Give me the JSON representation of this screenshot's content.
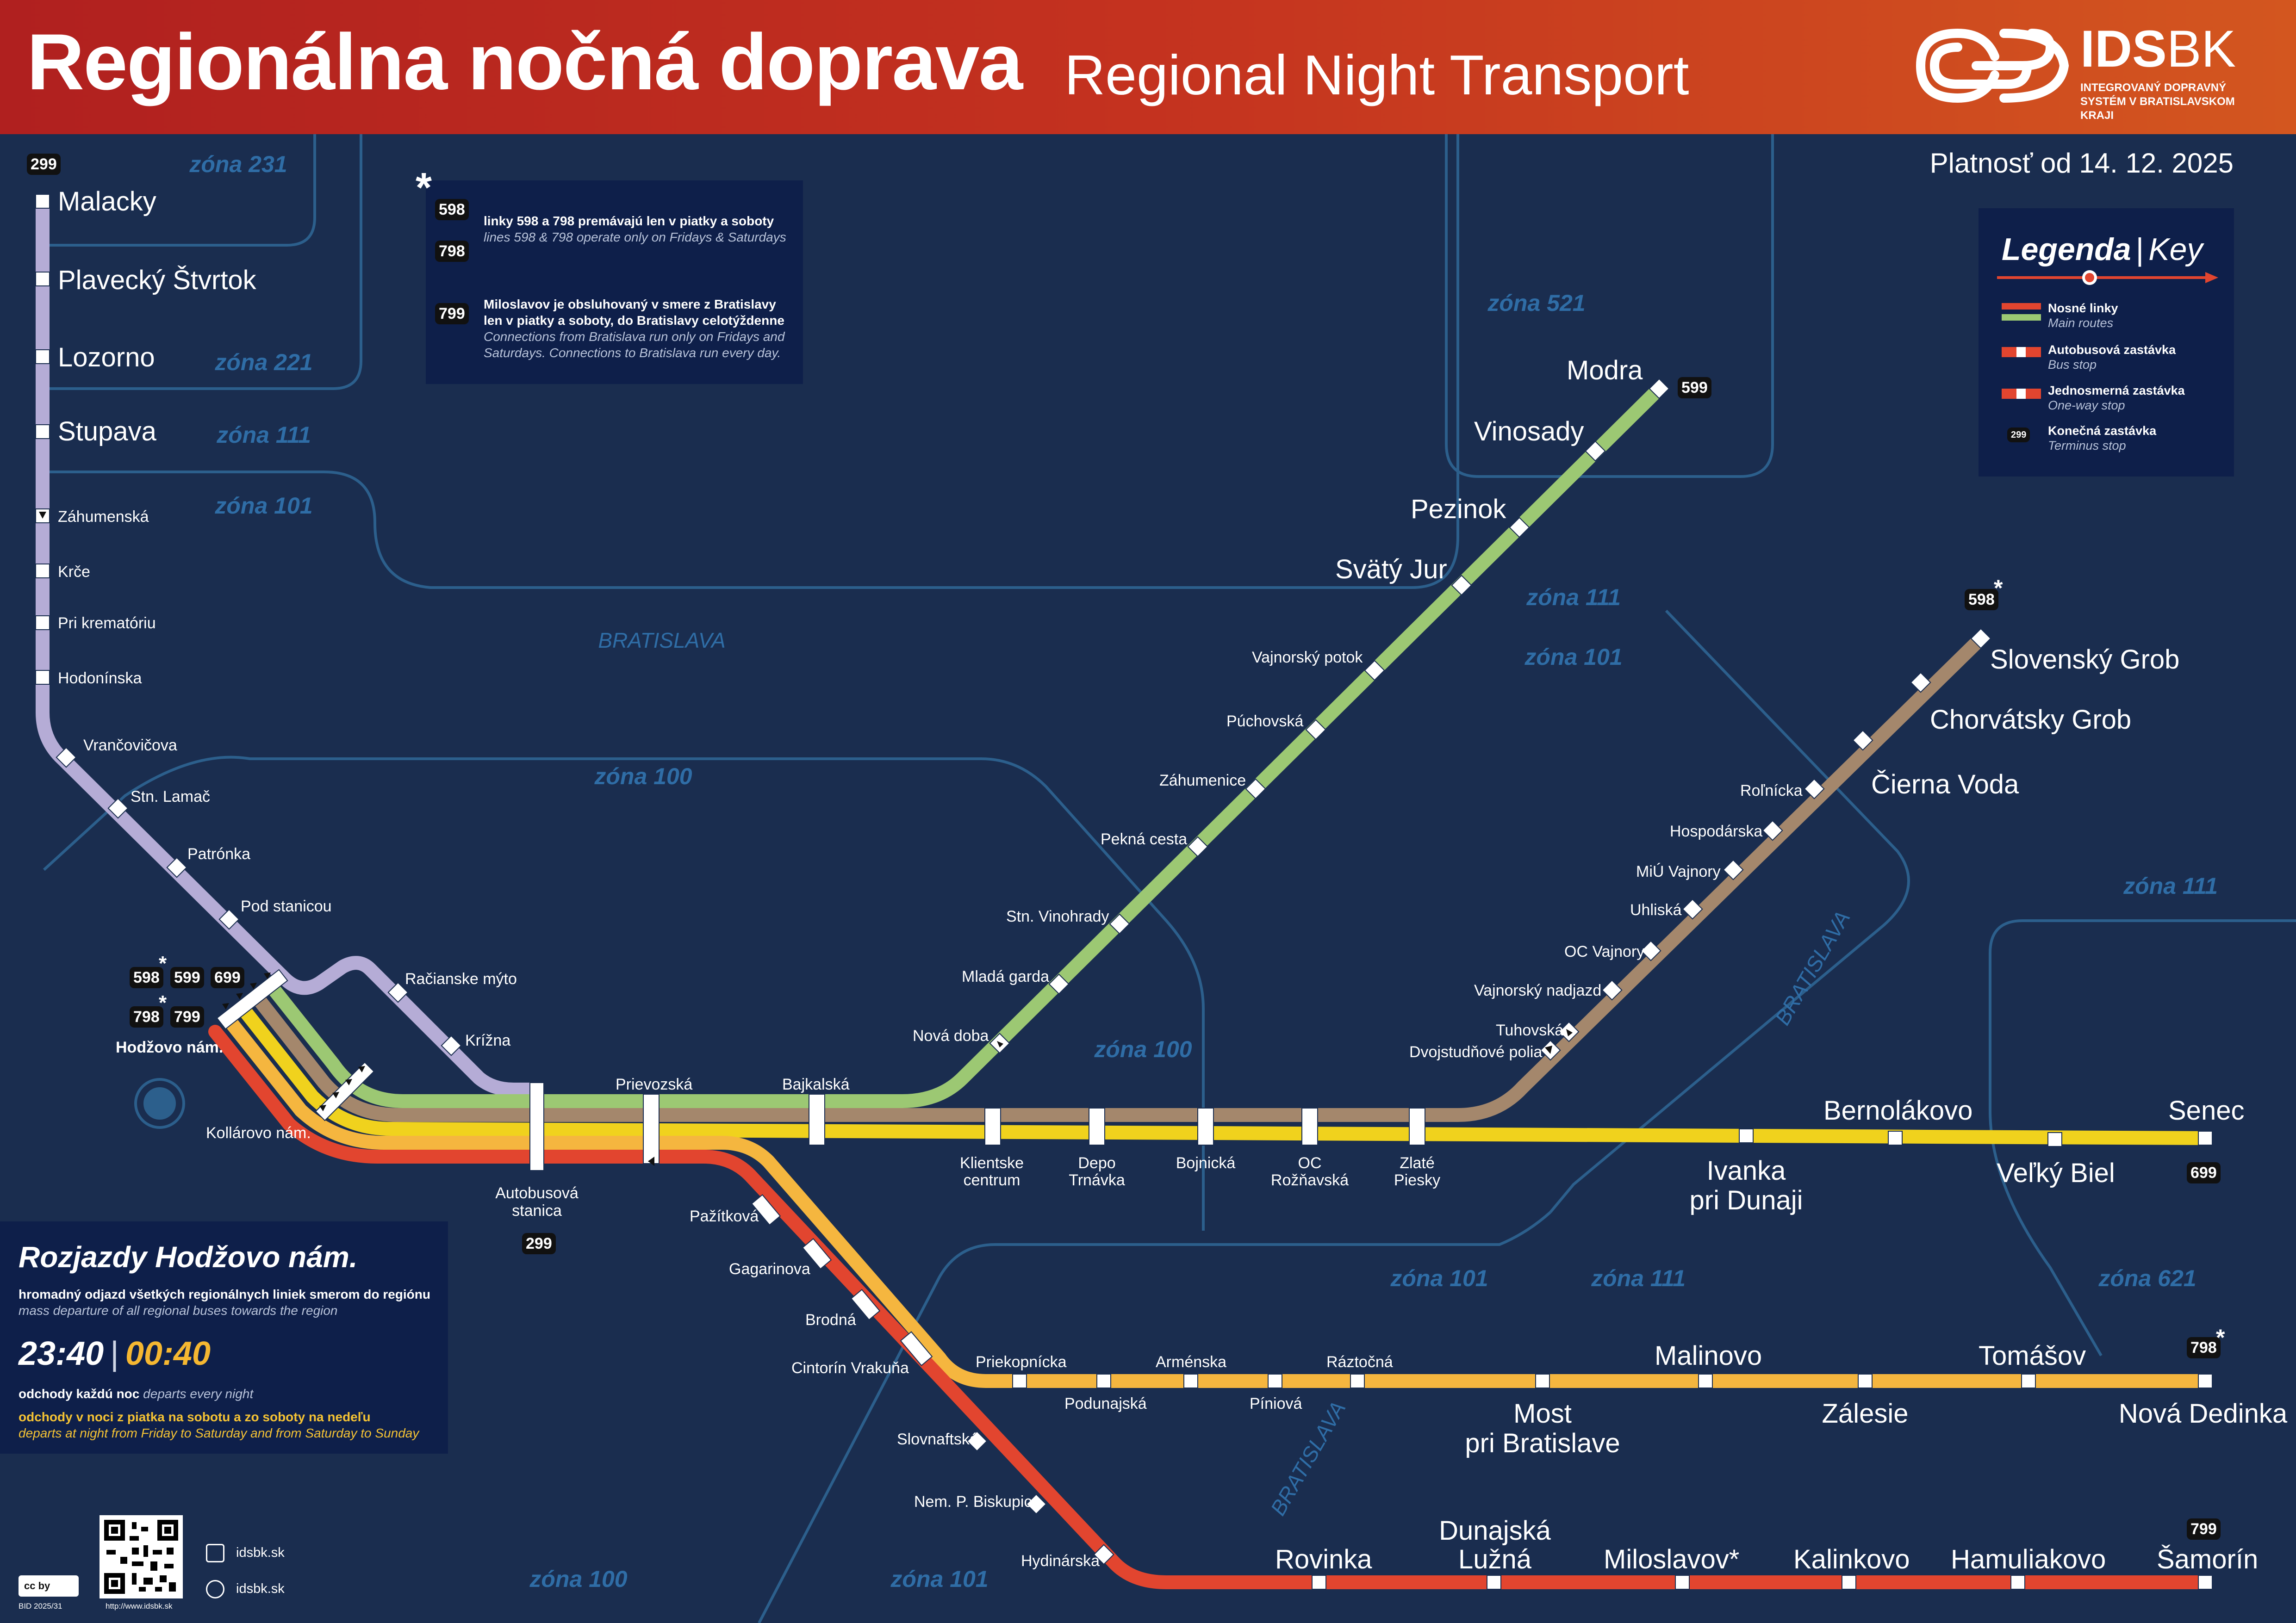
{
  "header": {
    "title": "Regionálna nočná doprava",
    "title_en": "Regional Night Transport",
    "logo_ids": "IDS",
    "logo_bk": "BK",
    "logo_sub": "INTEGROVANÝ DOPRAVNÝ SYSTÉM V BRATISLAVSKOM KRAJI",
    "validity": "Platnosť od 14. 12. 2025"
  },
  "legend": {
    "title": "Legenda",
    "title_en": "Key",
    "items": [
      {
        "label": "Nosné linky",
        "label_en": "Main routes"
      },
      {
        "label": "Autobusová zastávka",
        "label_en": "Bus stop"
      },
      {
        "label": "Jednosmerná zastávka",
        "label_en": "One-way stop"
      },
      {
        "label": "Konečná zastávka",
        "label_en": "Terminus stop",
        "badge": "299"
      }
    ]
  },
  "note": {
    "star": "*",
    "badges": [
      "598",
      "798",
      "799"
    ],
    "line1": "linky 598 a 798 premávajú len v piatky a soboty",
    "line1_en": "lines 598 & 798 operate only on Fridays & Saturdays",
    "line2a": "Miloslavov je obsluhovaný v smere z Bratislavy",
    "line2b": "len v piatky a soboty, do Bratislavy celotýždenne",
    "line2_en_a": "Connections from Bratislava run only on Fridays and",
    "line2_en_b": "Saturdays. Connections to Bratislava run every day."
  },
  "zones": {
    "z231": "zóna 231",
    "z221": "zóna 221",
    "z111a": "zóna 111",
    "z101a": "zóna 101",
    "z521": "zóna 521",
    "z111b": "zóna 111",
    "z101b": "zóna 101",
    "z100a": "zóna 100",
    "z100b": "zóna 100",
    "z111c": "zóna 111",
    "z101c": "zóna 101",
    "z111d": "zóna 111",
    "z621": "zóna 621",
    "z100c": "zóna 100",
    "z101d": "zóna 101",
    "ba1": "BRATISLAVA",
    "ba2": "BRATISLAVA",
    "ba3": "BRATISLAVA"
  },
  "stops": {
    "malacky": "Malacky",
    "plavecky": "Plavecký Štvrtok",
    "lozorno": "Lozorno",
    "stupava": "Stupava",
    "zahumenska": "Záhumenská",
    "krce": "Krče",
    "krematorium": "Pri krematóriu",
    "hodoninska": "Hodonínska",
    "vrancovicova": "Vrančovičova",
    "lamac": "Stn. Lamač",
    "patronka": "Patrónka",
    "podstanicou": "Pod stanicou",
    "racianske": "Račianske mýto",
    "krizna": "Krížna",
    "hodzovo": "Hodžovo nám.",
    "kollarovo": "Kollárovo nám.",
    "as1": "Autobusová",
    "as2": "stanica",
    "prievozska": "Prievozská",
    "bajkalska": "Bajkalská",
    "novadoba": "Nová doba",
    "mladagarda": "Mladá garda",
    "vinohrady": "Stn. Vinohrady",
    "peknacesta": "Pekná cesta",
    "zahumenice": "Záhumenice",
    "puchovska": "Púchovská",
    "vajnorskypotok": "Vajnorský potok",
    "svatyjur": "Svätý Jur",
    "pezinok": "Pezinok",
    "vinosady": "Vinosady",
    "modra": "Modra",
    "klientske1": "Klientske",
    "klientske2": "centrum",
    "depo1": "Depo",
    "depo2": "Trnávka",
    "bojnicka": "Bojnická",
    "oc1": "OC",
    "oc2": "Rožňavská",
    "zlate1": "Zlaté",
    "zlate2": "Piesky",
    "dvojstud": "Dvojstudňové polia",
    "tuhovska": "Tuhovská",
    "vajnadjazd": "Vajnorský nadjazd",
    "ocvajnory": "OC Vajnory",
    "uhliska": "Uhliská",
    "miu": "MiÚ Vajnory",
    "hospodarska": "Hospodárska",
    "rolnicka": "Roľnícka",
    "ciernavoda": "Čierna Voda",
    "chorvatsky": "Chorvátsky Grob",
    "slovensky": "Slovenský Grob",
    "ivanka1": "Ivanka",
    "ivanka2": "pri Dunaji",
    "bernolakovo": "Bernolákovo",
    "velkybiel": "Veľký Biel",
    "senec": "Senec",
    "pazitkova": "Pažítková",
    "gagarinova": "Gagarinova",
    "brodna": "Brodná",
    "cintorin": "Cintorín Vrakuňa",
    "priekopnicka": "Priekopnícka",
    "podunajska": "Podunajská",
    "armenska": "Arménska",
    "piniova": "Píniová",
    "raztocna": "Ráztočná",
    "most1": "Most",
    "most2": "pri Bratislave",
    "malinovo": "Malinovo",
    "zalesie": "Zálesie",
    "tomasov": "Tomášov",
    "novadedinka": "Nová Dedinka",
    "slovnaftska": "Slovnaftská",
    "biskupice": "Nem. P. Biskupice",
    "hydinarska": "Hydinárska",
    "rovinka": "Rovinka",
    "dunajska1": "Dunajská",
    "dunajska2": "Lužná",
    "miloslavov": "Miloslavov*",
    "kalinkovo": "Kalinkovo",
    "hamuliakovo": "Hamuliakovo",
    "samorin": "Šamorín"
  },
  "terminus": {
    "t299a": "299",
    "t599": "599",
    "t598": "598",
    "t699": "699",
    "t299b": "299",
    "t798": "798",
    "t799": "799",
    "star598": "*",
    "star798": "*",
    "h598": "598",
    "h599": "599",
    "h699": "699",
    "h798": "798",
    "h799": "799",
    "hs598": "*",
    "hs798": "*"
  },
  "departures": {
    "title": "Rozjazdy Hodžovo nám.",
    "desc": "hromadný odjazd všetkých regionálnych liniek smerom do regiónu",
    "desc_en": "mass departure of all regional buses towards the region",
    "time1": "23:40",
    "time2": "00:40",
    "every": "odchody každú noc",
    "every_en": "departs every night",
    "weekend": "odchody v noci z piatka na sobotu a zo soboty na nedeľu",
    "weekend_en": "departs at night from Friday to Saturday and from Saturday to Sunday"
  },
  "footer": {
    "web1": "idsbk.sk",
    "web2": "idsbk.sk",
    "qr_url": "http://www.idsbk.sk",
    "bid": "BID 2025/31",
    "cc": "cc by"
  },
  "colors": {
    "background": "#1a2d4f",
    "panel": "#0e1f4a",
    "line_299": "#b5acd6",
    "line_599": "#9cc873",
    "line_598": "#a4876c",
    "line_699": "#f0d21d",
    "line_798": "#f5b63f",
    "line_799": "#e2452f"
  }
}
